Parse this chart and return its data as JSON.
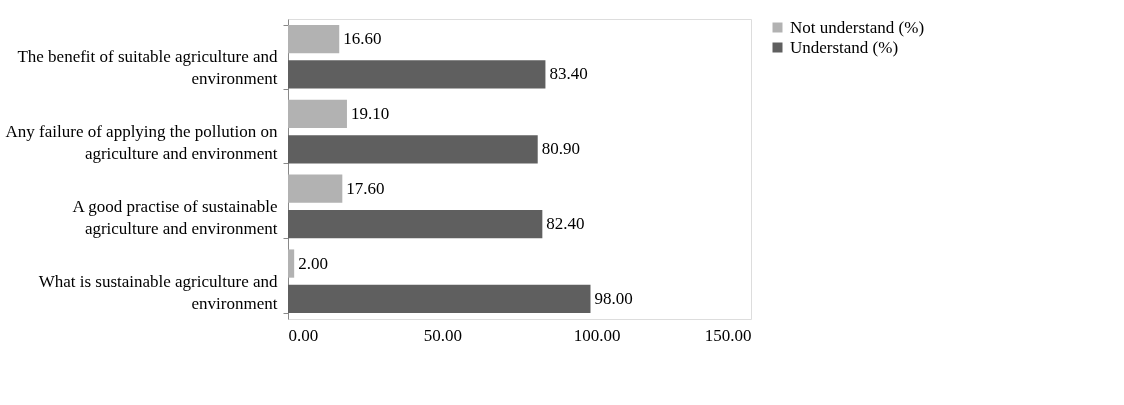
{
  "chart_data": {
    "type": "bar",
    "orientation": "horizontal",
    "categories": [
      "The benefit of suitable agriculture and environment",
      "Any failure of applying the pollution on agriculture and environment",
      "A good practise of sustainable agriculture and environment",
      "What is sustainable agriculture and environment"
    ],
    "series": [
      {
        "name": "Not understand (%)",
        "color": "#b2b2b2",
        "values": [
          16.6,
          19.1,
          17.6,
          2.0
        ],
        "value_labels": [
          "16.60",
          "19.10",
          "17.60",
          "2.00"
        ]
      },
      {
        "name": "Understand (%)",
        "color": "#5f5f5f",
        "values": [
          83.4,
          80.9,
          82.4,
          98.0
        ],
        "value_labels": [
          "83.40",
          "80.90",
          "82.40",
          "98.00"
        ]
      }
    ],
    "xlim": [
      0,
      150
    ],
    "xticks": [
      {
        "value": 0,
        "label": "0.00"
      },
      {
        "value": 50,
        "label": "50.00"
      },
      {
        "value": 100,
        "label": "100.00"
      },
      {
        "value": 150,
        "label": "150.00"
      }
    ],
    "legend": "right",
    "grid": false
  }
}
